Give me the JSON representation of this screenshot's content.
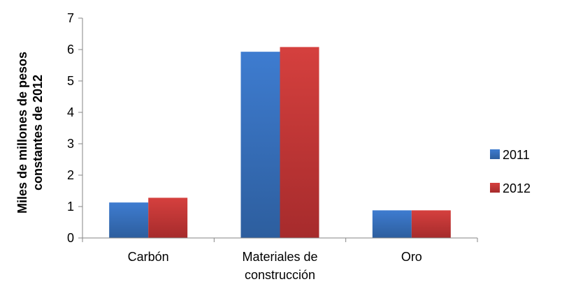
{
  "chart_data": {
    "type": "bar",
    "title": "",
    "xlabel": "",
    "ylabel_lines": [
      "Miles de millones de pesos",
      "constantes de 2012"
    ],
    "categories": [
      [
        "Carbón"
      ],
      [
        "Materiales de",
        "construcción"
      ],
      [
        "Oro"
      ]
    ],
    "series": [
      {
        "name": "2011",
        "values": [
          1.13,
          5.93,
          0.88
        ],
        "color": "#3b74c2"
      },
      {
        "name": "2012",
        "values": [
          1.28,
          6.08,
          0.88
        ],
        "color": "#c8393a"
      }
    ],
    "ylim": [
      0,
      7
    ],
    "yticks": [
      "0",
      "1",
      "2",
      "3",
      "4",
      "5",
      "6",
      "7"
    ],
    "grid": false,
    "legend_position": "right"
  }
}
